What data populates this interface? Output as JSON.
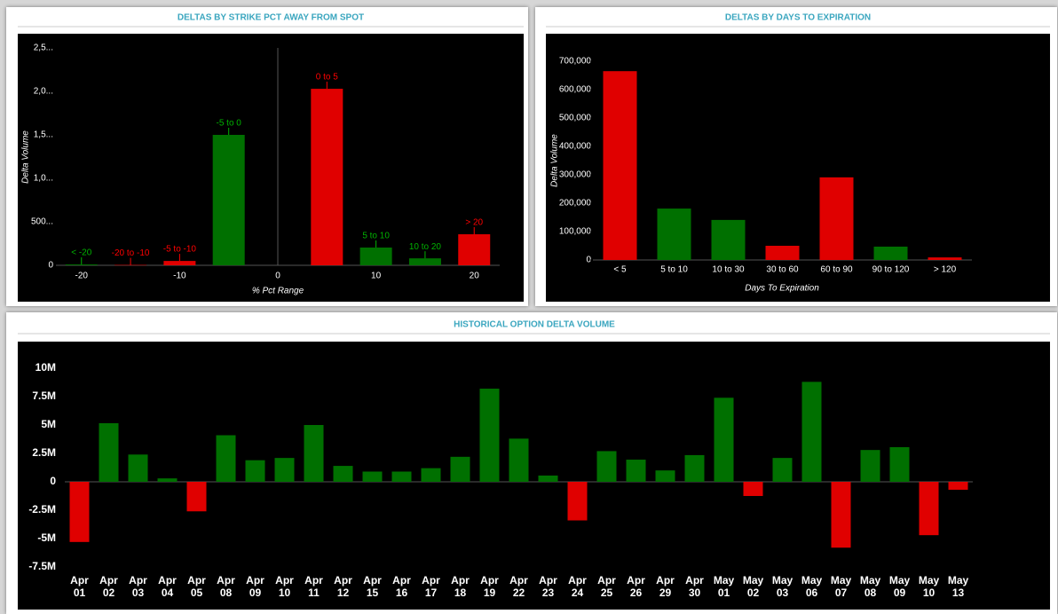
{
  "chart_data": [
    {
      "type": "bar",
      "title": "DELTAS BY STRIKE PCT AWAY FROM SPOT",
      "x_label": "% Pct Range",
      "y_label": "Delta Volume",
      "categories": [
        "< -20",
        "-20 to -10",
        "-5 to -10",
        "-5 to 0",
        "0 to 5",
        "5 to 10",
        "10 to 20",
        "> 20"
      ],
      "x": [
        -20,
        -15,
        -10,
        -5,
        5,
        10,
        15,
        20
      ],
      "values": [
        10000,
        4000,
        50000,
        1500000,
        2030000,
        204000,
        80000,
        357000
      ],
      "colors": [
        "#007000",
        "#e00000",
        "#e00000",
        "#007000",
        "#e00000",
        "#007000",
        "#007000",
        "#e00000"
      ],
      "xlim": [
        -22.6,
        22.6
      ],
      "xticks": [
        -20,
        -10,
        0,
        10,
        20
      ],
      "ylim": [
        0,
        2500000
      ],
      "yticks": [
        0,
        {
          "value": 500000,
          "label": "500..."
        },
        {
          "value": 1000000,
          "label": "1,0..."
        },
        {
          "value": 1500000,
          "label": "1,5..."
        },
        {
          "value": 2000000,
          "label": "2,0..."
        },
        {
          "value": 2500000,
          "label": "2,5..."
        }
      ],
      "grid": false
    },
    {
      "type": "bar",
      "title": "DELTAS BY DAYS TO EXPIRATION",
      "x_label": "Days To Expiration",
      "y_label": "Delta Volume",
      "categories": [
        "< 5",
        "5 to 10",
        "10 to 30",
        "30 to 60",
        "60 to 90",
        "90 to 120",
        "> 120"
      ],
      "values": [
        665000,
        181000,
        141000,
        50000,
        291000,
        47000,
        9000
      ],
      "colors": [
        "#e00000",
        "#007000",
        "#007000",
        "#e00000",
        "#e00000",
        "#007000",
        "#e00000"
      ],
      "ylim": [
        0,
        700000
      ],
      "yticks": [
        0,
        {
          "value": 100000,
          "label": "100,000"
        },
        {
          "value": 200000,
          "label": "200,000"
        },
        {
          "value": 300000,
          "label": "300,000"
        },
        {
          "value": 400000,
          "label": "400,000"
        },
        {
          "value": 500000,
          "label": "500,000"
        },
        {
          "value": 600000,
          "label": "600,000"
        },
        {
          "value": 700000,
          "label": "700,000"
        }
      ],
      "grid": false
    },
    {
      "type": "bar",
      "title": "HISTORICAL OPTION DELTA VOLUME",
      "categories": [
        "Apr 01",
        "Apr 02",
        "Apr 03",
        "Apr 04",
        "Apr 05",
        "Apr 08",
        "Apr 09",
        "Apr 10",
        "Apr 11",
        "Apr 12",
        "Apr 15",
        "Apr 16",
        "Apr 17",
        "Apr 18",
        "Apr 19",
        "Apr 22",
        "Apr 23",
        "Apr 24",
        "Apr 25",
        "Apr 26",
        "Apr 29",
        "Apr 30",
        "May 01",
        "May 02",
        "May 03",
        "May 06",
        "May 07",
        "May 08",
        "May 09",
        "May 10",
        "May 13"
      ],
      "values": [
        -5300000,
        5160000,
        2400000,
        300000,
        -2600000,
        4100000,
        1900000,
        2100000,
        5000000,
        1400000,
        900000,
        900000,
        1200000,
        2200000,
        8200000,
        3800000,
        550000,
        -3400000,
        2700000,
        1950000,
        1000000,
        2350000,
        7400000,
        -1250000,
        2100000,
        8800000,
        -5800000,
        2800000,
        3050000,
        -4700000,
        -700000
      ],
      "positive_color": "#007000",
      "negative_color": "#e00000",
      "ylim": [
        -7500000,
        10000000
      ],
      "yticks": [
        {
          "value": -7500000,
          "label": "-7.5M"
        },
        {
          "value": -5000000,
          "label": "-5M"
        },
        {
          "value": -2500000,
          "label": "-2.5M"
        },
        0,
        {
          "value": 2500000,
          "label": "2.5M"
        },
        {
          "value": 5000000,
          "label": "5M"
        },
        {
          "value": 7500000,
          "label": "7.5M"
        },
        {
          "value": 10000000,
          "label": "10M"
        }
      ],
      "grid": false
    }
  ]
}
